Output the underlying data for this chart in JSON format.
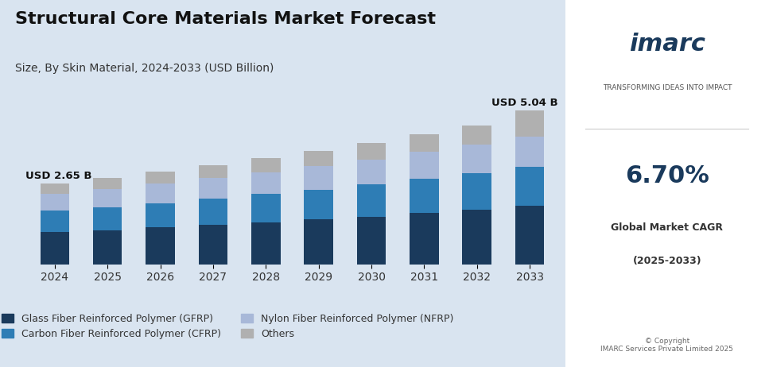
{
  "title": "Structural Core Materials Market Forecast",
  "subtitle": "Size, By Skin Material, 2024-2033 (USD Billion)",
  "years": [
    2024,
    2025,
    2026,
    2027,
    2028,
    2029,
    2030,
    2031,
    2032,
    2033
  ],
  "label_2024": "USD 2.65 B",
  "label_2033": "USD 5.04 B",
  "segments": [
    "Glass Fiber Reinforced Polymer (GFRP)",
    "Carbon Fiber Reinforced Polymer (CFRP)",
    "Nylon Fiber Reinforced Polymer (NFRP)",
    "Others"
  ],
  "colors": [
    "#1a3a5c",
    "#2e7db5",
    "#a8b8d8",
    "#b0b0b0"
  ],
  "data": {
    "GFRP": [
      1.05,
      1.12,
      1.2,
      1.28,
      1.37,
      1.46,
      1.56,
      1.67,
      1.78,
      1.9
    ],
    "CFRP": [
      0.7,
      0.75,
      0.8,
      0.86,
      0.92,
      0.98,
      1.05,
      1.12,
      1.2,
      1.28
    ],
    "NFRP": [
      0.55,
      0.59,
      0.63,
      0.67,
      0.72,
      0.77,
      0.82,
      0.88,
      0.94,
      1.0
    ],
    "Others": [
      0.35,
      0.37,
      0.4,
      0.43,
      0.46,
      0.49,
      0.53,
      0.57,
      0.61,
      0.86
    ]
  },
  "background_color": "#d9e4f0",
  "bar_width": 0.55,
  "ylim": [
    0,
    6.0
  ],
  "figsize": [
    9.67,
    4.62
  ],
  "dpi": 100,
  "legend_colors": [
    "#1a3a5c",
    "#2e7db5",
    "#a8b8d8",
    "#b0b0b0"
  ]
}
